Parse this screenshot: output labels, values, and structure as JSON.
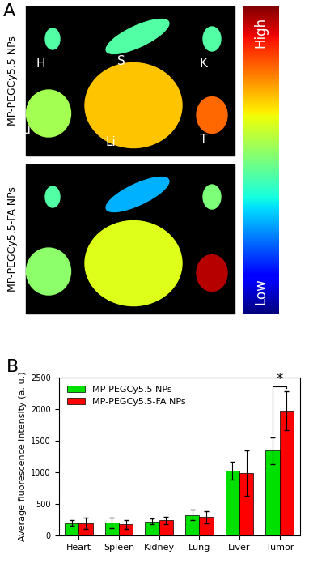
{
  "panel_labels": [
    "A",
    "B"
  ],
  "image_rows": [
    "MP-PEGCy5.5 NPs",
    "MP-PEGCy5.5-FA NPs"
  ],
  "organ_labels": [
    "H",
    "S",
    "K",
    "Lu",
    "Li",
    "T"
  ],
  "colorbar": {
    "high": "High",
    "low": "Low"
  },
  "chart_data": {
    "type": "bar",
    "y_label": "Average fluorescence intensity (a. u.)",
    "categories": [
      "Heart",
      "Spleen",
      "Kidney",
      "Lung",
      "Liver",
      "Tumor"
    ],
    "series": [
      {
        "name": "MP-PEGCy5.5 NPs",
        "color": "#00e000",
        "values": [
          200,
          205,
          225,
          325,
          1025,
          1340
        ],
        "errors": [
          45,
          85,
          45,
          85,
          140,
          210
        ]
      },
      {
        "name": "MP-PEGCy5.5-FA NPs",
        "color": "#ff0000",
        "values": [
          195,
          180,
          240,
          295,
          985,
          1970
        ],
        "errors": [
          85,
          70,
          60,
          95,
          360,
          310
        ]
      }
    ],
    "ylim": [
      0,
      2500
    ],
    "yticks": [
      0,
      500,
      1000,
      1500,
      2000,
      2500
    ],
    "legend": "upper left",
    "annotations": [
      {
        "text": "*",
        "category": "Tumor"
      }
    ]
  }
}
